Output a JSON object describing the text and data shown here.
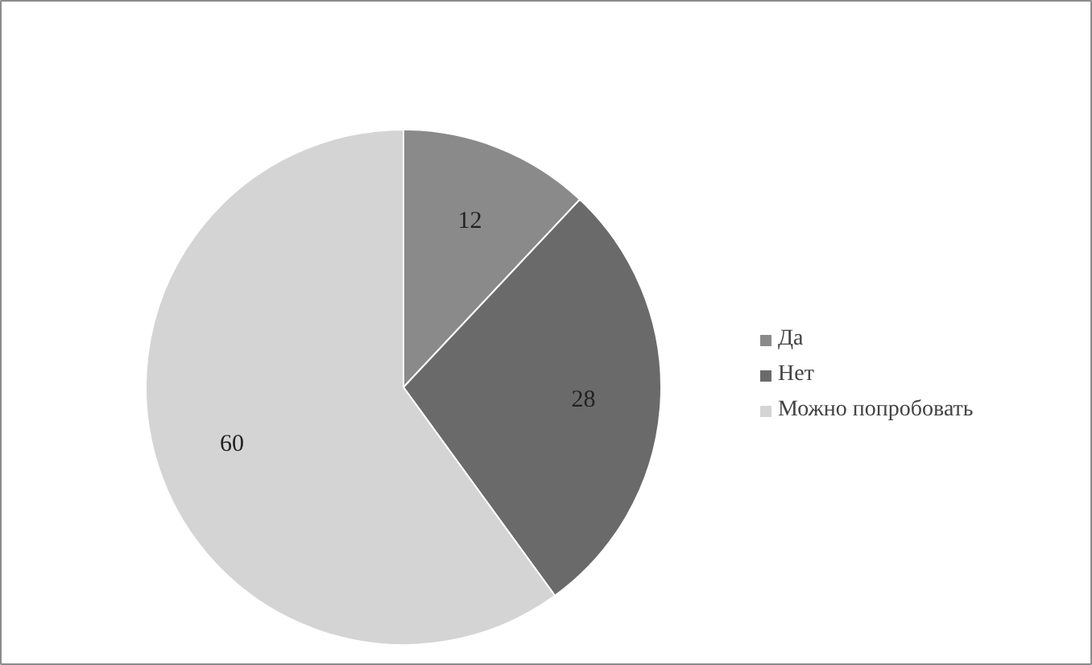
{
  "chart_data": {
    "type": "pie",
    "categories": [
      "Да",
      "Нет",
      "Можно попробовать"
    ],
    "values": [
      12,
      28,
      60
    ],
    "colors": [
      "#8a8a8a",
      "#6a6a6a",
      "#d4d4d4"
    ],
    "data_labels": true,
    "legend": "right"
  }
}
